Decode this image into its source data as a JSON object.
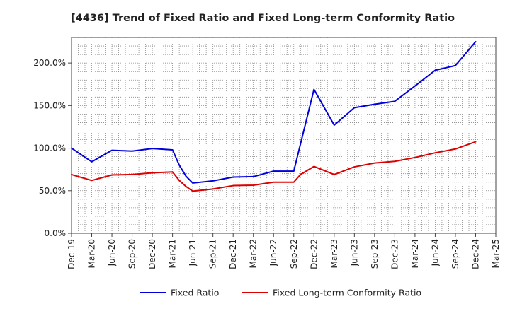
{
  "chart_data": {
    "type": "line",
    "title": "[4436]  Trend of Fixed Ratio and Fixed Long-term Conformity Ratio",
    "xlabel": "",
    "ylabel": "",
    "x_ticks": [
      "Dec-19",
      "Mar-20",
      "Jun-20",
      "Sep-20",
      "Dec-20",
      "Mar-21",
      "Jun-21",
      "Sep-21",
      "Dec-21",
      "Mar-22",
      "Jun-22",
      "Sep-22",
      "Dec-22",
      "Mar-23",
      "Jun-23",
      "Sep-23",
      "Dec-23",
      "Mar-24",
      "Jun-24",
      "Sep-24",
      "Dec-24",
      "Mar-25"
    ],
    "y_ticks": [
      "0.0%",
      "50.0%",
      "100.0%",
      "150.0%",
      "200.0%"
    ],
    "y_tick_values": [
      0,
      50,
      100,
      150,
      200
    ],
    "ylim": [
      0,
      230
    ],
    "grid": true,
    "legend_position": "bottom",
    "series": [
      {
        "name": "Fixed Ratio",
        "color": "#0000dd",
        "points": [
          [
            "Dec-19",
            100.0
          ],
          [
            "Mar-20",
            84.0
          ],
          [
            "Jun-20",
            97.5
          ],
          [
            "Sep-20",
            96.5
          ],
          [
            "Dec-20",
            99.5
          ],
          [
            "Mar-21",
            98.0
          ],
          [
            "Apr-21",
            80.0
          ],
          [
            "May-21",
            67.0
          ],
          [
            "Jun-21",
            59.0
          ],
          [
            "Sep-21",
            61.5
          ],
          [
            "Dec-21",
            66.0
          ],
          [
            "Mar-22",
            66.5
          ],
          [
            "Jun-22",
            73.0
          ],
          [
            "Sep-22",
            73.0
          ],
          [
            "Dec-22",
            169.0
          ],
          [
            "Mar-23",
            127.0
          ],
          [
            "Jun-23",
            147.5
          ],
          [
            "Sep-23",
            151.5
          ],
          [
            "Dec-23",
            155.0
          ],
          [
            "Mar-24",
            173.0
          ],
          [
            "Jun-24",
            191.5
          ],
          [
            "Sep-24",
            197.0
          ],
          [
            "Dec-24",
            225.0
          ]
        ]
      },
      {
        "name": "Fixed Long-term Conformity Ratio",
        "color": "#dd0000",
        "points": [
          [
            "Dec-19",
            69.0
          ],
          [
            "Mar-20",
            62.0
          ],
          [
            "Jun-20",
            68.5
          ],
          [
            "Sep-20",
            69.0
          ],
          [
            "Dec-20",
            71.0
          ],
          [
            "Mar-21",
            72.0
          ],
          [
            "Apr-21",
            62.0
          ],
          [
            "May-21",
            55.0
          ],
          [
            "Jun-21",
            49.5
          ],
          [
            "Sep-21",
            52.0
          ],
          [
            "Dec-21",
            56.0
          ],
          [
            "Mar-22",
            56.5
          ],
          [
            "Jun-22",
            60.0
          ],
          [
            "Sep-22",
            60.0
          ],
          [
            "Oct-22",
            69.0
          ],
          [
            "Dec-22",
            78.5
          ],
          [
            "Mar-23",
            69.0
          ],
          [
            "Jun-23",
            78.0
          ],
          [
            "Sep-23",
            82.5
          ],
          [
            "Dec-23",
            84.5
          ],
          [
            "Mar-24",
            89.0
          ],
          [
            "Jun-24",
            94.5
          ],
          [
            "Sep-24",
            99.0
          ],
          [
            "Dec-24",
            107.5
          ]
        ]
      }
    ]
  }
}
